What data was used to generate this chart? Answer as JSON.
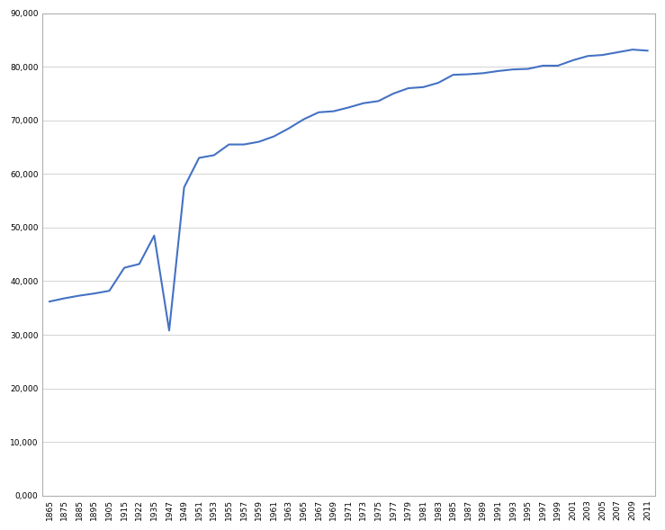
{
  "values": [
    36200,
    36800,
    37300,
    37700,
    38200,
    42500,
    43200,
    48500,
    30800,
    57500,
    63000,
    63500,
    65500,
    65500,
    66000,
    67000,
    68500,
    70200,
    71500,
    71700,
    72400,
    73200,
    73600,
    75000,
    76000,
    76200,
    77000,
    78500,
    78600,
    78800,
    79200,
    79500,
    79600,
    80200,
    80200,
    81200,
    82000,
    82200,
    82700,
    83200,
    83000
  ],
  "line_color": "#4472C4",
  "line_width": 1.5,
  "background_color": "#ffffff",
  "grid_color": "#d3d3d3",
  "ylim": [
    0,
    90000
  ],
  "ytick_values": [
    0,
    10000,
    20000,
    30000,
    40000,
    50000,
    60000,
    70000,
    80000,
    90000
  ],
  "ytick_labels": [
    "0,000",
    "10,000",
    "20,000",
    "30,000",
    "40,000",
    "50,000",
    "60,000",
    "70,000",
    "80,000",
    "90,000"
  ],
  "xtick_labels": [
    "1865",
    "1875",
    "1885",
    "1895",
    "1905",
    "1915",
    "1922",
    "1935",
    "1947",
    "1949",
    "1951",
    "1953",
    "1955",
    "1957",
    "1959",
    "1961",
    "1963",
    "1965",
    "1967",
    "1969",
    "1971",
    "1973",
    "1975",
    "1977",
    "1979",
    "1981",
    "1983",
    "1985",
    "1987",
    "1989",
    "1991",
    "1993",
    "1995",
    "1997",
    "1999",
    "2001",
    "2003",
    "2005",
    "2007",
    "2009",
    "2011"
  ],
  "tick_fontsize": 6.5,
  "border_color": "#b0b0b0"
}
